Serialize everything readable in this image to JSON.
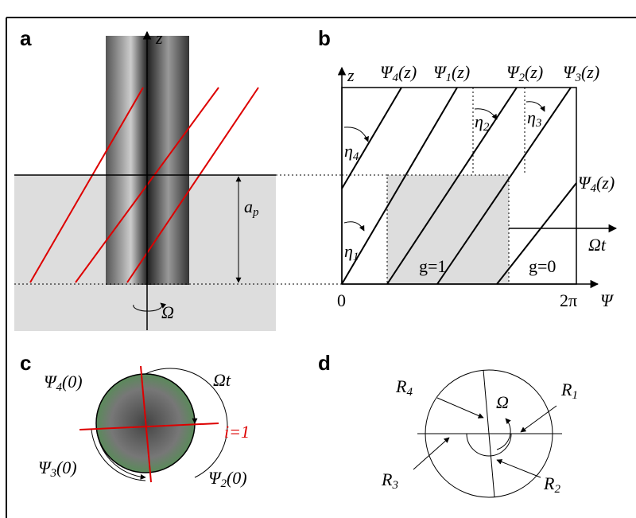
{
  "panels": {
    "a": {
      "label": "a",
      "z_axis": "z",
      "depth": {
        "sym": "a",
        "sub": "p"
      },
      "rotation": "Ω"
    },
    "b": {
      "label": "b",
      "z_axis": "z",
      "top_labels": [
        {
          "sym": "Ψ",
          "sub": "4",
          "arg": "(z)"
        },
        {
          "sym": "Ψ",
          "sub": "1",
          "arg": "(z)"
        },
        {
          "sym": "Ψ",
          "sub": "2",
          "arg": "(z)"
        },
        {
          "sym": "Ψ",
          "sub": "3",
          "arg": "(z)"
        }
      ],
      "side_label": {
        "sym": "Ψ",
        "sub": "4",
        "arg": "(z)"
      },
      "angles": [
        {
          "sym": "η",
          "sub": "4"
        },
        {
          "sym": "η",
          "sub": "1"
        },
        {
          "sym": "η",
          "sub": "2"
        },
        {
          "sym": "η",
          "sub": "3"
        }
      ],
      "rotation": "Ωt",
      "engaged": "g=1",
      "free": "g=0",
      "origin": "0",
      "end": "2π",
      "x_axis": "Ψ"
    },
    "c": {
      "label": "c",
      "angle_labels": [
        {
          "sym": "Ψ",
          "sub": "4",
          "arg": "(0)"
        },
        {
          "sym": "Ψ",
          "sub": "3",
          "arg": "(0)"
        },
        {
          "sym": "Ψ",
          "sub": "2",
          "arg": "(0)"
        }
      ],
      "rotation": "Ωt",
      "tooth": "i=1"
    },
    "d": {
      "label": "d",
      "rotation": "Ω",
      "radii": [
        {
          "sym": "R",
          "sub": "4"
        },
        {
          "sym": "R",
          "sub": "1"
        },
        {
          "sym": "R",
          "sub": "3"
        },
        {
          "sym": "R",
          "sub": "2"
        }
      ]
    }
  }
}
